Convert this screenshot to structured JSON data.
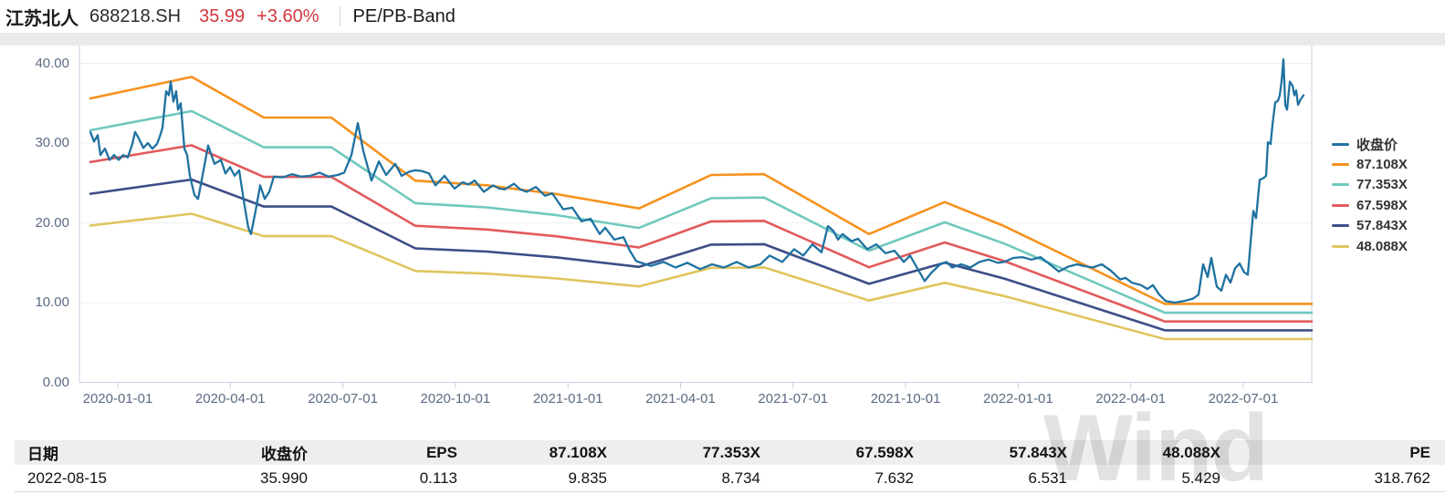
{
  "header": {
    "stock_name": "江苏北人",
    "ticker": "688218.SH",
    "price": "35.99",
    "change": "+3.60%",
    "tab": "PE/PB-Band"
  },
  "colors": {
    "up_red": "#d2373e",
    "price_line": "#1f72a1",
    "band_87": "#f6921e",
    "band_77": "#70c8be",
    "band_67": "#e25a5b",
    "band_57": "#3d4e87",
    "band_48": "#e0c55e",
    "axis_line": "#c6d0e0",
    "grid_line": "#efefef",
    "tick_text": "#5b6b82",
    "watermark_gray": "#e2e2e2"
  },
  "chart": {
    "y_axis": {
      "ticks": [
        "40.00",
        "30.00",
        "20.00",
        "10.00",
        "0.00"
      ]
    },
    "x_axis": {
      "ticks": [
        "2020-01-01",
        "2020-04-01",
        "2020-07-01",
        "2020-10-01",
        "2021-01-01",
        "2021-04-01",
        "2021-07-01",
        "2021-10-01",
        "2022-01-01",
        "2022-04-01",
        "2022-07-01"
      ]
    },
    "legend": [
      {
        "label": "收盘价",
        "color": "#1f72a1"
      },
      {
        "label": "87.108X",
        "color": "#f6921e"
      },
      {
        "label": "77.353X",
        "color": "#70c8be"
      },
      {
        "label": "67.598X",
        "color": "#e25a5b"
      },
      {
        "label": "57.843X",
        "color": "#3d4e87"
      },
      {
        "label": "48.088X",
        "color": "#e0c55e"
      }
    ]
  },
  "chart_data": {
    "type": "line",
    "title": "PE-Band 江苏北人 688218.SH",
    "ylim": [
      0,
      42
    ],
    "x_unit": "plot-x-pixel (2019-12 through 2022-08, quarterly ticks listed in chart.x_axis)",
    "band_series": [
      {
        "name": "87.108X",
        "multiple": 87.108,
        "color": "#f6921e"
      },
      {
        "name": "77.353X",
        "multiple": 77.353,
        "color": "#70c8be"
      },
      {
        "name": "67.598X",
        "multiple": 67.598,
        "color": "#e25a5b"
      },
      {
        "name": "57.843X",
        "multiple": 57.843,
        "color": "#3d4e87"
      },
      {
        "name": "48.088X",
        "multiple": 48.088,
        "color": "#e0c55e"
      }
    ],
    "eps_waypoints": [
      [
        99,
        0.4087
      ],
      [
        210,
        0.4397
      ],
      [
        289,
        0.3811
      ],
      [
        363,
        0.3811
      ],
      [
        455,
        0.2904
      ],
      [
        533,
        0.2836
      ],
      [
        610,
        0.2709
      ],
      [
        700,
        0.2503
      ],
      [
        779,
        0.2985
      ],
      [
        837,
        0.2996
      ],
      [
        952,
        0.2135
      ],
      [
        1035,
        0.2595
      ],
      [
        1100,
        0.225
      ],
      [
        1276,
        0.1129
      ],
      [
        1437,
        0.1129
      ]
    ],
    "price_series": {
      "name": "收盘价",
      "color": "#1f72a1",
      "last_value": 35.99,
      "points": [
        [
          99,
          31.4
        ],
        [
          103,
          30.2
        ],
        [
          107,
          31.0
        ],
        [
          110,
          28.5
        ],
        [
          115,
          29.3
        ],
        [
          120,
          27.9
        ],
        [
          125,
          28.5
        ],
        [
          130,
          27.9
        ],
        [
          135,
          28.5
        ],
        [
          140,
          28.2
        ],
        [
          145,
          29.9
        ],
        [
          148,
          31.4
        ],
        [
          152,
          30.6
        ],
        [
          157,
          29.4
        ],
        [
          162,
          30.0
        ],
        [
          167,
          29.3
        ],
        [
          172,
          29.9
        ],
        [
          175,
          30.8
        ],
        [
          178,
          31.9
        ],
        [
          182,
          36.5
        ],
        [
          185,
          36.0
        ],
        [
          187,
          37.7
        ],
        [
          190,
          35.2
        ],
        [
          193,
          36.5
        ],
        [
          195,
          34.2
        ],
        [
          198,
          35.0
        ],
        [
          202,
          29.3
        ],
        [
          205,
          28.5
        ],
        [
          208,
          25.9
        ],
        [
          213,
          23.5
        ],
        [
          217,
          23.0
        ],
        [
          222,
          26.0
        ],
        [
          228,
          29.7
        ],
        [
          235,
          27.4
        ],
        [
          242,
          27.9
        ],
        [
          247,
          26.2
        ],
        [
          252,
          27.0
        ],
        [
          257,
          25.9
        ],
        [
          262,
          26.6
        ],
        [
          267,
          22.8
        ],
        [
          272,
          19.4
        ],
        [
          275,
          18.6
        ],
        [
          280,
          21.5
        ],
        [
          285,
          24.7
        ],
        [
          290,
          23.0
        ],
        [
          295,
          23.9
        ],
        [
          300,
          25.8
        ],
        [
          310,
          25.7
        ],
        [
          320,
          26.1
        ],
        [
          330,
          25.8
        ],
        [
          340,
          25.9
        ],
        [
          350,
          26.3
        ],
        [
          360,
          25.8
        ],
        [
          370,
          26.0
        ],
        [
          377,
          26.3
        ],
        [
          385,
          28.5
        ],
        [
          392,
          32.5
        ],
        [
          398,
          29.0
        ],
        [
          407,
          25.3
        ],
        [
          415,
          27.7
        ],
        [
          423,
          26.0
        ],
        [
          433,
          27.4
        ],
        [
          440,
          25.9
        ],
        [
          448,
          26.4
        ],
        [
          455,
          26.6
        ],
        [
          462,
          26.5
        ],
        [
          470,
          26.2
        ],
        [
          477,
          24.7
        ],
        [
          487,
          25.9
        ],
        [
          493,
          25.0
        ],
        [
          498,
          24.3
        ],
        [
          507,
          25.1
        ],
        [
          513,
          24.8
        ],
        [
          520,
          25.3
        ],
        [
          530,
          23.9
        ],
        [
          540,
          24.7
        ],
        [
          547,
          24.3
        ],
        [
          553,
          24.2
        ],
        [
          563,
          24.9
        ],
        [
          570,
          24.2
        ],
        [
          577,
          23.9
        ],
        [
          587,
          24.5
        ],
        [
          597,
          23.4
        ],
        [
          605,
          23.7
        ],
        [
          617,
          21.7
        ],
        [
          627,
          21.9
        ],
        [
          637,
          20.2
        ],
        [
          647,
          20.5
        ],
        [
          657,
          18.6
        ],
        [
          663,
          19.4
        ],
        [
          673,
          17.9
        ],
        [
          683,
          18.2
        ],
        [
          690,
          16.5
        ],
        [
          697,
          15.2
        ],
        [
          705,
          14.9
        ],
        [
          713,
          14.6
        ],
        [
          727,
          15.1
        ],
        [
          740,
          14.4
        ],
        [
          753,
          15.0
        ],
        [
          767,
          14.2
        ],
        [
          780,
          14.8
        ],
        [
          793,
          14.4
        ],
        [
          807,
          15.1
        ],
        [
          820,
          14.4
        ],
        [
          833,
          14.8
        ],
        [
          843,
          15.9
        ],
        [
          857,
          15.1
        ],
        [
          870,
          16.7
        ],
        [
          880,
          15.9
        ],
        [
          890,
          17.3
        ],
        [
          900,
          16.3
        ],
        [
          907,
          19.6
        ],
        [
          913,
          19.0
        ],
        [
          918,
          17.9
        ],
        [
          923,
          18.6
        ],
        [
          933,
          17.7
        ],
        [
          940,
          18.0
        ],
        [
          950,
          16.7
        ],
        [
          960,
          17.3
        ],
        [
          970,
          16.2
        ],
        [
          980,
          16.5
        ],
        [
          990,
          15.1
        ],
        [
          997,
          15.9
        ],
        [
          1007,
          13.9
        ],
        [
          1013,
          12.7
        ],
        [
          1020,
          13.7
        ],
        [
          1030,
          14.8
        ],
        [
          1037,
          15.1
        ],
        [
          1043,
          14.4
        ],
        [
          1053,
          14.8
        ],
        [
          1063,
          14.4
        ],
        [
          1073,
          15.1
        ],
        [
          1083,
          15.4
        ],
        [
          1093,
          15.0
        ],
        [
          1100,
          15.1
        ],
        [
          1110,
          15.6
        ],
        [
          1120,
          15.7
        ],
        [
          1130,
          15.4
        ],
        [
          1140,
          15.7
        ],
        [
          1150,
          14.8
        ],
        [
          1160,
          13.9
        ],
        [
          1170,
          14.5
        ],
        [
          1180,
          14.8
        ],
        [
          1187,
          14.6
        ],
        [
          1197,
          14.4
        ],
        [
          1207,
          14.8
        ],
        [
          1217,
          14.0
        ],
        [
          1227,
          12.9
        ],
        [
          1233,
          13.1
        ],
        [
          1240,
          12.5
        ],
        [
          1250,
          12.2
        ],
        [
          1257,
          11.7
        ],
        [
          1263,
          12.2
        ],
        [
          1270,
          11.0
        ],
        [
          1277,
          10.2
        ],
        [
          1287,
          10.0
        ],
        [
          1297,
          10.2
        ],
        [
          1307,
          10.5
        ],
        [
          1313,
          11.0
        ],
        [
          1318,
          14.8
        ],
        [
          1323,
          13.2
        ],
        [
          1327,
          15.6
        ],
        [
          1333,
          12.0
        ],
        [
          1338,
          11.5
        ],
        [
          1343,
          13.5
        ],
        [
          1348,
          12.5
        ],
        [
          1353,
          14.3
        ],
        [
          1358,
          14.9
        ],
        [
          1363,
          13.8
        ],
        [
          1367,
          13.5
        ],
        [
          1373,
          21.5
        ],
        [
          1376,
          20.6
        ],
        [
          1380,
          25.4
        ],
        [
          1384,
          25.6
        ],
        [
          1387,
          25.9
        ],
        [
          1389,
          30.1
        ],
        [
          1392,
          29.9
        ],
        [
          1394,
          32.3
        ],
        [
          1397,
          35.1
        ],
        [
          1400,
          35.3
        ],
        [
          1402,
          36.0
        ],
        [
          1404,
          37.8
        ],
        [
          1406,
          40.5
        ],
        [
          1408,
          34.8
        ],
        [
          1410,
          34.2
        ],
        [
          1413,
          37.7
        ],
        [
          1416,
          37.2
        ],
        [
          1418,
          36.0
        ],
        [
          1420,
          36.6
        ],
        [
          1422,
          34.8
        ],
        [
          1425,
          35.5
        ],
        [
          1428,
          35.99
        ]
      ]
    }
  },
  "table": {
    "headers": [
      "日期",
      "收盘价",
      "EPS",
      "87.108X",
      "77.353X",
      "67.598X",
      "57.843X",
      "48.088X",
      "PE"
    ],
    "row": [
      "2022-08-15",
      "35.990",
      "0.113",
      "9.835",
      "8.734",
      "7.632",
      "6.531",
      "5.429",
      "318.762"
    ]
  },
  "watermark": "Wind"
}
